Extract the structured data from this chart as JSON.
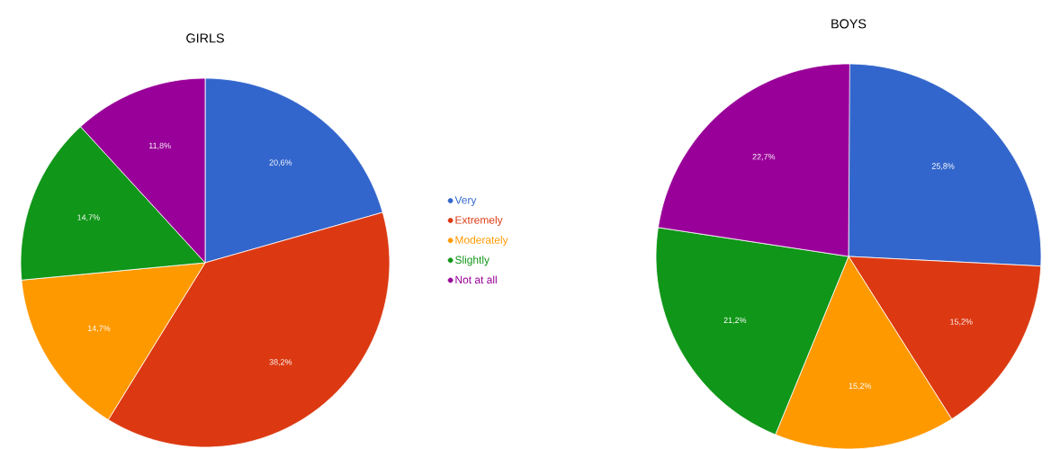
{
  "chart_data": {
    "type": "pie",
    "categories": [
      "Very",
      "Extremely",
      "Moderately",
      "Slightly",
      "Not at all"
    ],
    "colors": [
      "#3366cc",
      "#dc3912",
      "#ff9900",
      "#109618",
      "#990099"
    ],
    "legend": "left",
    "series": [
      {
        "name": "GIRLS",
        "values": [
          20.6,
          38.2,
          14.7,
          14.7,
          11.8
        ],
        "value_labels": [
          "20,6%",
          "38,2%",
          "14,7%",
          "14,7%",
          "11,8%"
        ]
      },
      {
        "name": "BOYS",
        "values": [
          25.8,
          15.2,
          15.2,
          21.2,
          22.7
        ],
        "value_labels": [
          "25,8%",
          "15,2%",
          "15,2%",
          "21,2%",
          "22,7%"
        ]
      }
    ]
  }
}
